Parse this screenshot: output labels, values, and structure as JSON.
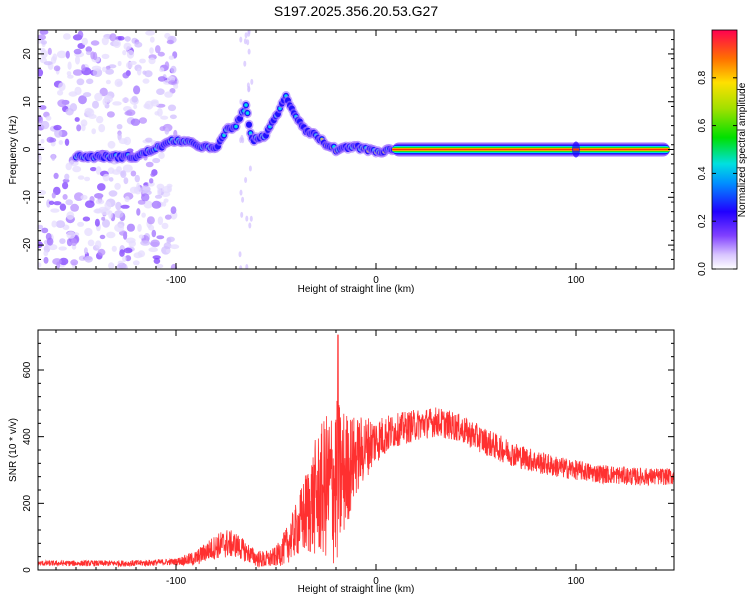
{
  "title": "S197.2025.356.20.53.G27",
  "chart_data": [
    {
      "type": "heatmap",
      "xlabel": "Height of straight line (km)",
      "ylabel": "Frequency (Hz)",
      "xlim": [
        -169,
        149
      ],
      "ylim": [
        -25,
        25
      ],
      "xticks": [
        -100,
        0,
        100
      ],
      "yticks": [
        -20,
        -10,
        0,
        10,
        20
      ],
      "colorbar": {
        "label": "Normalized spectral amplitude",
        "range": [
          0,
          1
        ],
        "ticks": [
          "0.0",
          "0.2",
          "0.4",
          "0.6",
          "0.8"
        ]
      },
      "features": [
        {
          "name": "scattered noise",
          "x_range": [
            -169,
            -100
          ],
          "y_range": [
            -25,
            25
          ]
        },
        {
          "name": "fringe trace",
          "points": [
            [
              -150,
              -1.5
            ],
            [
              -120,
              -1.5
            ],
            [
              -100,
              2
            ],
            [
              -90,
              1
            ],
            [
              -80,
              0
            ],
            [
              -75,
              4
            ],
            [
              -70,
              5
            ],
            [
              -65,
              9
            ],
            [
              -62,
              2
            ],
            [
              -55,
              3
            ],
            [
              -50,
              7
            ],
            [
              -45,
              11
            ],
            [
              -40,
              7
            ],
            [
              -35,
              4
            ],
            [
              -30,
              3
            ],
            [
              -25,
              1
            ],
            [
              -20,
              0
            ],
            [
              -10,
              0.5
            ],
            [
              0,
              -0.5
            ],
            [
              10,
              0
            ]
          ]
        },
        {
          "name": "steady carrier line",
          "x_range": [
            8,
            149
          ],
          "y": 0
        }
      ]
    },
    {
      "type": "line",
      "xlabel": "Height of straight line (km)",
      "ylabel": "SNR (10 * v/v)",
      "xlim": [
        -169,
        149
      ],
      "ylim": [
        0,
        720
      ],
      "xticks": [
        -100,
        0,
        100
      ],
      "yticks": [
        0,
        200,
        400,
        600
      ],
      "color": "#ff3030",
      "series": [
        {
          "name": "SNR envelope (base)",
          "x": [
            -169,
            -120,
            -100,
            -90,
            -85,
            -80,
            -75,
            -70,
            -65,
            -60,
            -55,
            -50,
            -45,
            -40,
            -35,
            -30,
            -25,
            -20,
            -15,
            -10,
            -5,
            0,
            10,
            20,
            30,
            40,
            50,
            60,
            70,
            80,
            90,
            100,
            110,
            120,
            130,
            140,
            149
          ],
          "y": [
            20,
            20,
            25,
            35,
            55,
            70,
            80,
            75,
            55,
            35,
            30,
            40,
            70,
            120,
            170,
            220,
            250,
            260,
            300,
            340,
            370,
            390,
            420,
            435,
            445,
            430,
            400,
            370,
            345,
            325,
            310,
            300,
            290,
            285,
            280,
            280,
            280
          ]
        },
        {
          "name": "SNR fluctuation amplitude",
          "x": [
            -169,
            -100,
            -85,
            -75,
            -60,
            -50,
            -40,
            -30,
            -20,
            -15,
            -10,
            0,
            10,
            30,
            60,
            100,
            149
          ],
          "y": [
            8,
            10,
            30,
            45,
            25,
            30,
            80,
            180,
            260,
            180,
            120,
            70,
            50,
            45,
            40,
            30,
            25
          ]
        }
      ],
      "peak": {
        "x": -19,
        "y": 705
      }
    }
  ]
}
